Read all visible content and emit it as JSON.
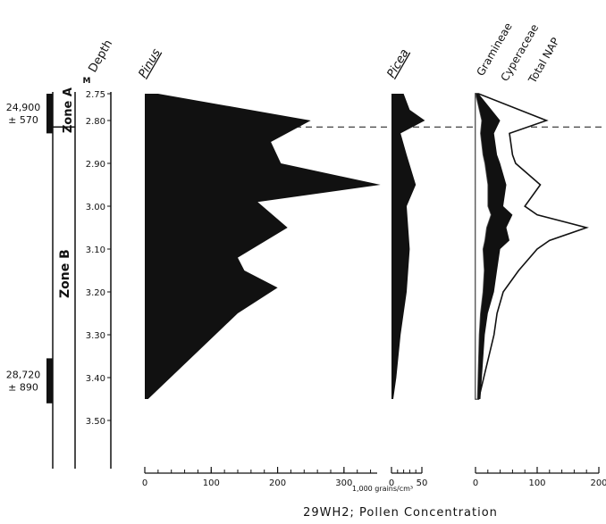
{
  "chart_data": {
    "type": "area",
    "title": "29WH2; Pollen Concentration",
    "units": "1,000 grains/cm³",
    "depth_axis": {
      "label": "Depth",
      "unit": "M",
      "range": [
        2.75,
        3.5
      ],
      "ticks": [
        "2.75",
        "2.80",
        "2.90",
        "3.00",
        "3.10",
        "3.20",
        "3.30",
        "3.40",
        "3.50"
      ]
    },
    "zones": [
      {
        "name": "Zone A",
        "top": 2.75,
        "bottom": 2.815
      },
      {
        "name": "Zone B",
        "top": 2.815,
        "bottom": 3.5
      }
    ],
    "dates": [
      {
        "line1": "24,900",
        "line2": "± 570",
        "top": 2.75,
        "bottom": 2.83
      },
      {
        "line1": "28,720",
        "line2": "± 890",
        "top": 3.355,
        "bottom": 3.46
      }
    ],
    "zone_boundary_depth": 2.815,
    "panels": [
      {
        "name": "Pinus",
        "xlim": [
          0,
          350
        ],
        "ticks": [
          "0",
          "100",
          "200",
          "300"
        ],
        "depth": [
          2.75,
          2.8,
          2.85,
          2.9,
          2.95,
          2.99,
          3.05,
          3.12,
          3.15,
          3.19,
          3.25,
          3.45
        ],
        "values": [
          20,
          250,
          190,
          205,
          355,
          170,
          215,
          140,
          150,
          200,
          140,
          5
        ]
      },
      {
        "name": "Picea",
        "xlim": [
          0,
          50
        ],
        "ticks": [
          "0",
          "50"
        ],
        "depth": [
          2.75,
          2.78,
          2.8,
          2.83,
          2.88,
          2.95,
          3.0,
          3.1,
          3.2,
          3.3,
          3.4,
          3.45
        ],
        "values": [
          20,
          30,
          55,
          15,
          25,
          40,
          25,
          30,
          25,
          15,
          8,
          3
        ]
      },
      {
        "name": "NAP",
        "xlim": [
          0,
          200
        ],
        "ticks": [
          "0",
          "100",
          "200"
        ],
        "labels": [
          "Gramineae",
          "Cyperaceae",
          "Total NAP"
        ],
        "depth": [
          2.75,
          2.8,
          2.83,
          2.88,
          2.9,
          2.95,
          3.0,
          3.02,
          3.05,
          3.08,
          3.1,
          3.15,
          3.2,
          3.25,
          3.3,
          3.45
        ],
        "gramineae": [
          0,
          10,
          8,
          12,
          15,
          20,
          20,
          25,
          18,
          15,
          12,
          14,
          12,
          8,
          6,
          3
        ],
        "cyperaceae": [
          5,
          40,
          30,
          35,
          40,
          50,
          45,
          60,
          50,
          55,
          40,
          35,
          30,
          20,
          15,
          8
        ],
        "total_nap": [
          5,
          115,
          55,
          60,
          65,
          105,
          80,
          100,
          180,
          120,
          100,
          70,
          45,
          35,
          30,
          5
        ]
      }
    ]
  }
}
